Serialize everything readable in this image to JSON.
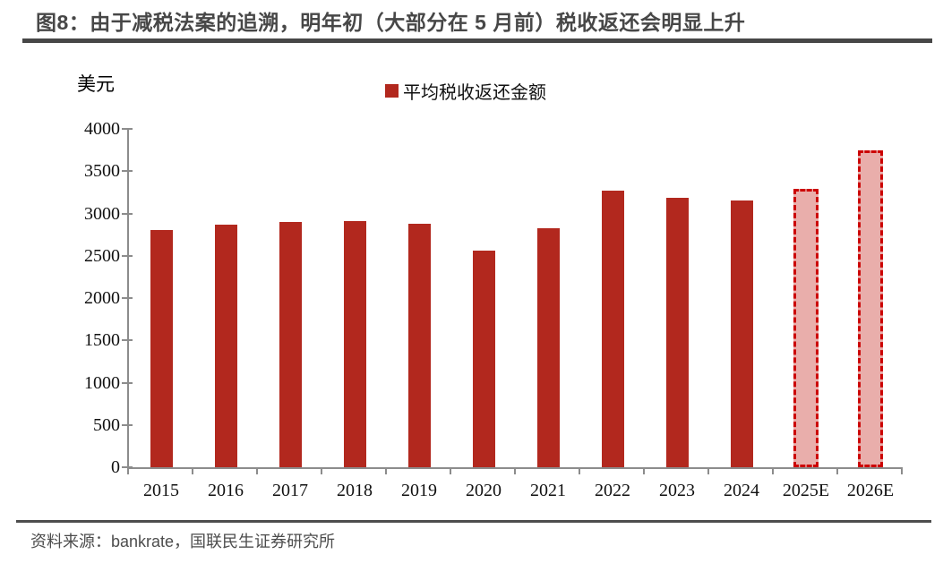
{
  "header": {
    "title": "图8：由于减税法案的追溯，明年初（大部分在 5 月前）税收返还会明显上升"
  },
  "chart": {
    "unit_label": "美元",
    "legend_label": "平均税收返还金额"
  },
  "chart_data": {
    "type": "bar",
    "title": "图8：由于减税法案的追溯，明年初（大部分在 5 月前）税收返还会明显上升",
    "ylabel": "美元",
    "xlabel": "",
    "legend": [
      "平均税收返还金额"
    ],
    "legend_position": "top",
    "grid": false,
    "categories": [
      "2015",
      "2016",
      "2017",
      "2018",
      "2019",
      "2020",
      "2021",
      "2022",
      "2023",
      "2024",
      "2025E",
      "2026E"
    ],
    "values": [
      2800,
      2870,
      2900,
      2910,
      2880,
      2560,
      2830,
      3270,
      3180,
      3150,
      3290,
      3750
    ],
    "is_estimate": [
      false,
      false,
      false,
      false,
      false,
      false,
      false,
      false,
      false,
      false,
      true,
      true
    ],
    "ylim": [
      0,
      4000
    ],
    "ytick_step": 500,
    "colors": {
      "bar": "#B2281E",
      "estimate_fill": "#E9AEAB",
      "estimate_border": "#CC0000",
      "axis": "#8C8C8C"
    }
  },
  "footer": {
    "source": "资料来源：bankrate，国联民生证券研究所"
  }
}
